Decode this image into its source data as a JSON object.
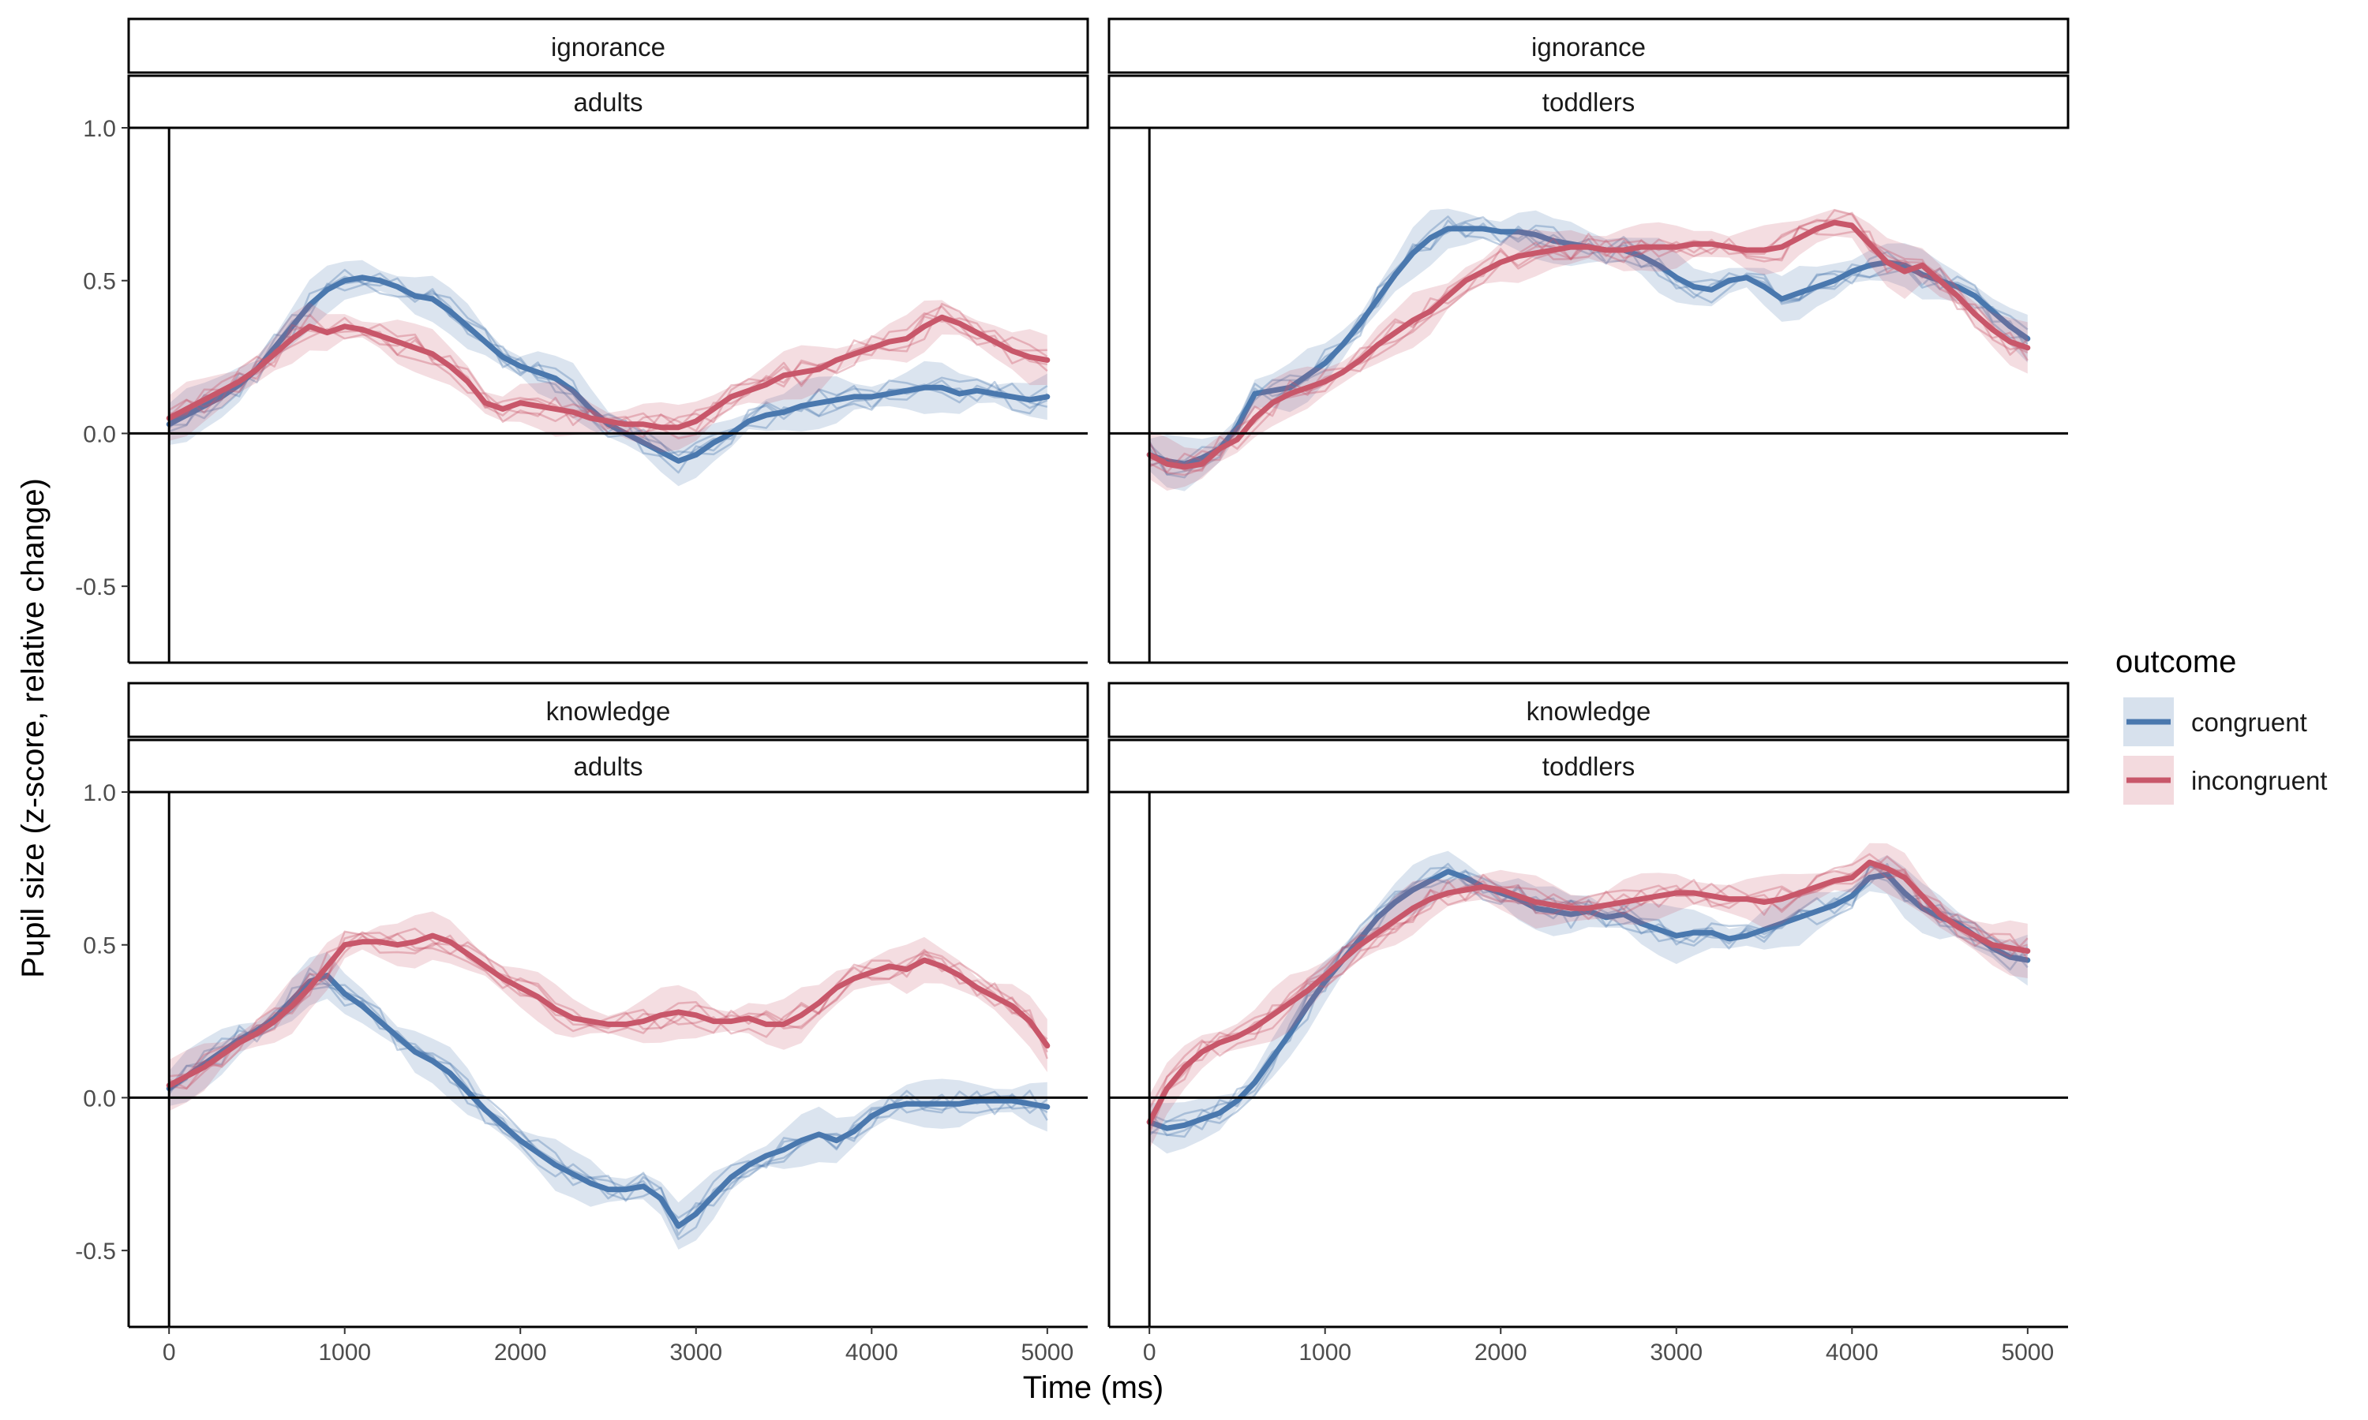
{
  "chart_data": {
    "type": "line",
    "xlabel": "Time (ms)",
    "ylabel": "Pupil size (z-score, relative change)",
    "xlim": [
      -230,
      5230
    ],
    "ylim": [
      -0.75,
      1.0
    ],
    "x_ticks": [
      0,
      1000,
      2000,
      3000,
      4000,
      5000
    ],
    "y_ticks": [
      -0.5,
      0.0,
      0.5,
      1.0
    ],
    "x_tick_labels": [
      "0",
      "1000",
      "2000",
      "3000",
      "4000",
      "5000"
    ],
    "y_tick_labels": [
      "-0.5",
      "0.0",
      "0.5",
      "1.0"
    ],
    "grid": false,
    "reference_lines": {
      "x": 0,
      "y": 0
    },
    "legend": {
      "title": "outcome",
      "position": "right",
      "entries": [
        {
          "label": "congruent",
          "color": "#4a78ae"
        },
        {
          "label": "incongruent",
          "color": "#c8576a"
        }
      ]
    },
    "colors": {
      "congruent": "#4a78ae",
      "incongruent": "#c8576a"
    },
    "panels": [
      {
        "strip_top": "ignorance",
        "strip_bottom": "adults",
        "series": [
          {
            "name": "congruent",
            "x": [
              0,
              100,
              200,
              300,
              400,
              500,
              600,
              700,
              800,
              900,
              1000,
              1100,
              1200,
              1300,
              1400,
              1500,
              1600,
              1700,
              1800,
              1900,
              2000,
              2100,
              2200,
              2300,
              2400,
              2500,
              2600,
              2700,
              2800,
              2900,
              3000,
              3100,
              3200,
              3300,
              3400,
              3500,
              3600,
              3700,
              3800,
              3900,
              4000,
              4100,
              4200,
              4300,
              4400,
              4500,
              4600,
              4700,
              4800,
              4900,
              5000
            ],
            "y": [
              0.03,
              0.06,
              0.09,
              0.12,
              0.16,
              0.21,
              0.28,
              0.35,
              0.42,
              0.47,
              0.5,
              0.51,
              0.5,
              0.48,
              0.45,
              0.44,
              0.4,
              0.35,
              0.3,
              0.25,
              0.22,
              0.2,
              0.18,
              0.14,
              0.08,
              0.03,
              0.0,
              -0.03,
              -0.06,
              -0.09,
              -0.07,
              -0.03,
              0.0,
              0.04,
              0.06,
              0.07,
              0.09,
              0.1,
              0.11,
              0.12,
              0.12,
              0.13,
              0.14,
              0.15,
              0.15,
              0.13,
              0.14,
              0.13,
              0.12,
              0.11,
              0.12
            ]
          },
          {
            "name": "incongruent",
            "x": [
              0,
              100,
              200,
              300,
              400,
              500,
              600,
              700,
              800,
              900,
              1000,
              1100,
              1200,
              1300,
              1400,
              1500,
              1600,
              1700,
              1800,
              1900,
              2000,
              2100,
              2200,
              2300,
              2400,
              2500,
              2600,
              2700,
              2800,
              2900,
              3000,
              3100,
              3200,
              3300,
              3400,
              3500,
              3600,
              3700,
              3800,
              3900,
              4000,
              4100,
              4200,
              4300,
              4400,
              4500,
              4600,
              4700,
              4800,
              4900,
              5000
            ],
            "y": [
              0.05,
              0.08,
              0.11,
              0.14,
              0.17,
              0.21,
              0.26,
              0.31,
              0.35,
              0.33,
              0.35,
              0.34,
              0.32,
              0.3,
              0.28,
              0.26,
              0.22,
              0.17,
              0.1,
              0.08,
              0.1,
              0.09,
              0.08,
              0.07,
              0.05,
              0.04,
              0.03,
              0.03,
              0.02,
              0.02,
              0.04,
              0.08,
              0.12,
              0.14,
              0.16,
              0.19,
              0.2,
              0.21,
              0.24,
              0.26,
              0.28,
              0.3,
              0.31,
              0.35,
              0.38,
              0.36,
              0.33,
              0.3,
              0.27,
              0.25,
              0.24
            ]
          }
        ]
      },
      {
        "strip_top": "ignorance",
        "strip_bottom": "toddlers",
        "series": [
          {
            "name": "congruent",
            "x": [
              0,
              100,
              200,
              300,
              400,
              500,
              600,
              700,
              800,
              900,
              1000,
              1100,
              1200,
              1300,
              1400,
              1500,
              1600,
              1700,
              1800,
              1900,
              2000,
              2100,
              2200,
              2300,
              2400,
              2500,
              2600,
              2700,
              2800,
              2900,
              3000,
              3100,
              3200,
              3300,
              3400,
              3500,
              3600,
              3700,
              3800,
              3900,
              4000,
              4100,
              4200,
              4300,
              4400,
              4500,
              4600,
              4700,
              4800,
              4900,
              5000
            ],
            "y": [
              -0.07,
              -0.09,
              -0.1,
              -0.08,
              -0.05,
              0.02,
              0.13,
              0.14,
              0.15,
              0.19,
              0.23,
              0.29,
              0.36,
              0.44,
              0.52,
              0.59,
              0.64,
              0.67,
              0.67,
              0.67,
              0.66,
              0.66,
              0.65,
              0.63,
              0.62,
              0.61,
              0.6,
              0.6,
              0.58,
              0.55,
              0.51,
              0.48,
              0.47,
              0.5,
              0.51,
              0.48,
              0.44,
              0.46,
              0.48,
              0.5,
              0.53,
              0.55,
              0.56,
              0.55,
              0.52,
              0.5,
              0.48,
              0.45,
              0.4,
              0.35,
              0.31
            ]
          },
          {
            "name": "incongruent",
            "x": [
              0,
              100,
              200,
              300,
              400,
              500,
              600,
              700,
              800,
              900,
              1000,
              1100,
              1200,
              1300,
              1400,
              1500,
              1600,
              1700,
              1800,
              1900,
              2000,
              2100,
              2200,
              2300,
              2400,
              2500,
              2600,
              2700,
              2800,
              2900,
              3000,
              3100,
              3200,
              3300,
              3400,
              3500,
              3600,
              3700,
              3800,
              3900,
              4000,
              4100,
              4200,
              4300,
              4400,
              4500,
              4600,
              4700,
              4800,
              4900,
              5000
            ],
            "y": [
              -0.07,
              -0.1,
              -0.11,
              -0.1,
              -0.05,
              -0.02,
              0.05,
              0.1,
              0.13,
              0.15,
              0.17,
              0.2,
              0.24,
              0.29,
              0.33,
              0.37,
              0.4,
              0.45,
              0.5,
              0.53,
              0.56,
              0.58,
              0.59,
              0.6,
              0.61,
              0.61,
              0.6,
              0.6,
              0.61,
              0.61,
              0.61,
              0.62,
              0.62,
              0.61,
              0.6,
              0.6,
              0.61,
              0.64,
              0.67,
              0.69,
              0.68,
              0.62,
              0.56,
              0.53,
              0.55,
              0.5,
              0.45,
              0.39,
              0.34,
              0.3,
              0.28
            ]
          }
        ]
      },
      {
        "strip_top": "knowledge",
        "strip_bottom": "adults",
        "series": [
          {
            "name": "congruent",
            "x": [
              0,
              100,
              200,
              300,
              400,
              500,
              600,
              700,
              800,
              900,
              1000,
              1100,
              1200,
              1300,
              1400,
              1500,
              1600,
              1700,
              1800,
              1900,
              2000,
              2100,
              2200,
              2300,
              2400,
              2500,
              2600,
              2700,
              2800,
              2900,
              3000,
              3100,
              3200,
              3300,
              3400,
              3500,
              3600,
              3700,
              3800,
              3900,
              4000,
              4100,
              4200,
              4300,
              4400,
              4500,
              4600,
              4700,
              4800,
              4900,
              5000
            ],
            "y": [
              0.03,
              0.07,
              0.11,
              0.15,
              0.19,
              0.22,
              0.26,
              0.32,
              0.38,
              0.4,
              0.34,
              0.3,
              0.25,
              0.2,
              0.15,
              0.12,
              0.08,
              0.02,
              -0.04,
              -0.09,
              -0.14,
              -0.18,
              -0.22,
              -0.25,
              -0.28,
              -0.3,
              -0.3,
              -0.29,
              -0.33,
              -0.42,
              -0.38,
              -0.32,
              -0.26,
              -0.22,
              -0.19,
              -0.17,
              -0.14,
              -0.12,
              -0.14,
              -0.11,
              -0.06,
              -0.03,
              -0.02,
              -0.02,
              -0.02,
              -0.02,
              -0.01,
              -0.01,
              -0.01,
              -0.02,
              -0.03
            ]
          },
          {
            "name": "incongruent",
            "x": [
              0,
              100,
              200,
              300,
              400,
              500,
              600,
              700,
              800,
              900,
              1000,
              1100,
              1200,
              1300,
              1400,
              1500,
              1600,
              1700,
              1800,
              1900,
              2000,
              2100,
              2200,
              2300,
              2400,
              2500,
              2600,
              2700,
              2800,
              2900,
              3000,
              3100,
              3200,
              3300,
              3400,
              3500,
              3600,
              3700,
              3800,
              3900,
              4000,
              4100,
              4200,
              4300,
              4400,
              4500,
              4600,
              4700,
              4800,
              4900,
              5000
            ],
            "y": [
              0.04,
              0.07,
              0.1,
              0.14,
              0.18,
              0.21,
              0.25,
              0.3,
              0.36,
              0.43,
              0.5,
              0.51,
              0.51,
              0.5,
              0.51,
              0.53,
              0.51,
              0.47,
              0.43,
              0.39,
              0.36,
              0.33,
              0.29,
              0.26,
              0.25,
              0.24,
              0.24,
              0.25,
              0.27,
              0.28,
              0.27,
              0.25,
              0.25,
              0.26,
              0.24,
              0.24,
              0.27,
              0.31,
              0.36,
              0.39,
              0.41,
              0.43,
              0.42,
              0.45,
              0.43,
              0.4,
              0.36,
              0.33,
              0.3,
              0.25,
              0.17
            ]
          }
        ]
      },
      {
        "strip_top": "knowledge",
        "strip_bottom": "toddlers",
        "series": [
          {
            "name": "congruent",
            "x": [
              0,
              100,
              200,
              300,
              400,
              500,
              600,
              700,
              800,
              900,
              1000,
              1100,
              1200,
              1300,
              1400,
              1500,
              1600,
              1700,
              1800,
              1900,
              2000,
              2100,
              2200,
              2300,
              2400,
              2500,
              2600,
              2700,
              2800,
              2900,
              3000,
              3100,
              3200,
              3300,
              3400,
              3500,
              3600,
              3700,
              3800,
              3900,
              4000,
              4100,
              4200,
              4300,
              4400,
              4500,
              4600,
              4700,
              4800,
              4900,
              5000
            ],
            "y": [
              -0.08,
              -0.1,
              -0.09,
              -0.07,
              -0.05,
              -0.01,
              0.05,
              0.13,
              0.21,
              0.3,
              0.38,
              0.45,
              0.52,
              0.59,
              0.64,
              0.68,
              0.71,
              0.74,
              0.72,
              0.69,
              0.67,
              0.65,
              0.62,
              0.61,
              0.6,
              0.61,
              0.59,
              0.6,
              0.57,
              0.55,
              0.53,
              0.54,
              0.54,
              0.52,
              0.53,
              0.55,
              0.57,
              0.59,
              0.61,
              0.63,
              0.66,
              0.72,
              0.73,
              0.67,
              0.62,
              0.59,
              0.57,
              0.53,
              0.49,
              0.46,
              0.45
            ]
          },
          {
            "name": "incongruent",
            "x": [
              0,
              100,
              200,
              300,
              400,
              500,
              600,
              700,
              800,
              900,
              1000,
              1100,
              1200,
              1300,
              1400,
              1500,
              1600,
              1700,
              1800,
              1900,
              2000,
              2100,
              2200,
              2300,
              2400,
              2500,
              2600,
              2700,
              2800,
              2900,
              3000,
              3100,
              3200,
              3300,
              3400,
              3500,
              3600,
              3700,
              3800,
              3900,
              4000,
              4100,
              4200,
              4300,
              4400,
              4500,
              4600,
              4700,
              4800,
              4900,
              5000
            ],
            "y": [
              -0.08,
              0.03,
              0.1,
              0.15,
              0.18,
              0.2,
              0.23,
              0.27,
              0.31,
              0.35,
              0.4,
              0.45,
              0.5,
              0.54,
              0.58,
              0.62,
              0.65,
              0.67,
              0.68,
              0.69,
              0.68,
              0.66,
              0.64,
              0.63,
              0.62,
              0.62,
              0.63,
              0.64,
              0.65,
              0.66,
              0.67,
              0.67,
              0.66,
              0.65,
              0.65,
              0.64,
              0.65,
              0.67,
              0.69,
              0.71,
              0.72,
              0.77,
              0.75,
              0.72,
              0.66,
              0.6,
              0.56,
              0.53,
              0.5,
              0.49,
              0.48
            ]
          }
        ]
      }
    ]
  }
}
